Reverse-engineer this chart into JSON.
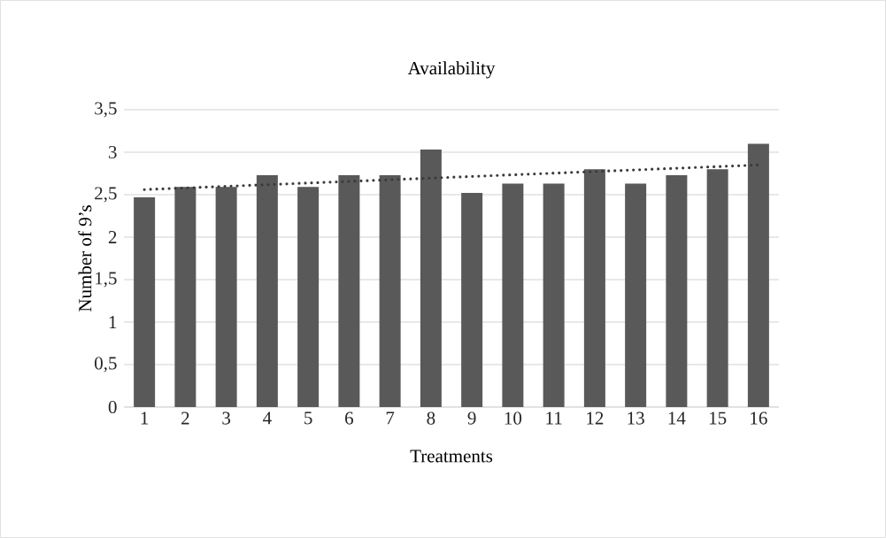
{
  "chart_data": {
    "type": "bar",
    "title": "Availability",
    "xlabel": "Treatments",
    "ylabel": "Number of 9’s",
    "categories": [
      "1",
      "2",
      "3",
      "4",
      "5",
      "6",
      "7",
      "8",
      "9",
      "10",
      "11",
      "12",
      "13",
      "14",
      "15",
      "16"
    ],
    "series": [
      {
        "color": "#595959",
        "values": [
          2.47,
          2.59,
          2.59,
          2.73,
          2.59,
          2.73,
          2.73,
          3.03,
          2.52,
          2.63,
          2.63,
          2.8,
          2.63,
          2.73,
          2.8,
          3.1
        ]
      },
      {
        "type": "line",
        "color": "#3a3a3a",
        "line_style": "dotted",
        "x": [
          "1",
          "16"
        ],
        "values": [
          2.56,
          2.85
        ]
      }
    ],
    "ylim": [
      0,
      3.5
    ],
    "yticks": [
      0,
      {
        "value": 0.5,
        "label": "0,5"
      },
      1,
      {
        "value": 1.5,
        "label": "1,5"
      },
      2,
      {
        "value": 2.5,
        "label": "2,5"
      },
      3,
      {
        "value": 3.5,
        "label": "3,5"
      }
    ],
    "grid": "y"
  }
}
